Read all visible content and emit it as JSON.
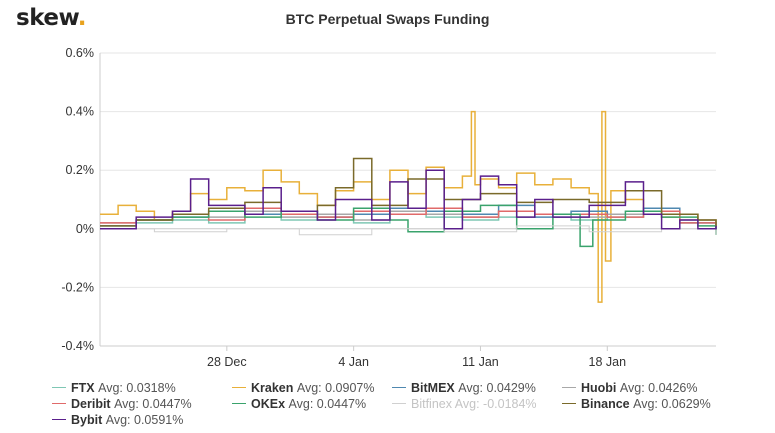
{
  "header": {
    "logo_text": "skew",
    "logo_dot": ".",
    "title": "BTC Perpetual Swaps Funding"
  },
  "chart_data": {
    "type": "line",
    "title": "BTC Perpetual Swaps Funding",
    "xlabel": "",
    "ylabel": "",
    "x_range": [
      "2020-12-21",
      "2021-01-24"
    ],
    "x_ticks": [
      {
        "date": "2020-12-28",
        "label": "28 Dec"
      },
      {
        "date": "2021-01-04",
        "label": "4 Jan"
      },
      {
        "date": "2021-01-11",
        "label": "11 Jan"
      },
      {
        "date": "2021-01-18",
        "label": "18 Jan"
      }
    ],
    "ylim": [
      -0.4,
      0.6
    ],
    "y_ticks": [
      -0.4,
      -0.2,
      0,
      0.2,
      0.4,
      0.6
    ],
    "y_tick_labels": [
      "-0.4%",
      "-0.2%",
      "0%",
      "0.2%",
      "0.4%",
      "0.6%"
    ],
    "grid": "horizontal",
    "legend_position": "bottom",
    "step_lines": true,
    "series": [
      {
        "name": "FTX",
        "avg_label": "Avg: 0.0318%",
        "color": "#7fc7b4",
        "muted": false,
        "points": [
          [
            "2020-12-21",
            0.01
          ],
          [
            "2020-12-23",
            0.02
          ],
          [
            "2020-12-25",
            0.03
          ],
          [
            "2020-12-27",
            0.02
          ],
          [
            "2020-12-29",
            0.05
          ],
          [
            "2020-12-31",
            0.03
          ],
          [
            "2021-01-02",
            0.04
          ],
          [
            "2021-01-04",
            0.02
          ],
          [
            "2021-01-06",
            0.05
          ],
          [
            "2021-01-08",
            0.04
          ],
          [
            "2021-01-10",
            0.03
          ],
          [
            "2021-01-12",
            0.04
          ],
          [
            "2021-01-14",
            0.05
          ],
          [
            "2021-01-16",
            0.03
          ],
          [
            "2021-01-18",
            0.04
          ],
          [
            "2021-01-20",
            0.05
          ],
          [
            "2021-01-22",
            0.02
          ],
          [
            "2021-01-24",
            0.0
          ]
        ]
      },
      {
        "name": "Kraken",
        "avg_label": "Avg: 0.0907%",
        "color": "#e8b03a",
        "muted": false,
        "points": [
          [
            "2020-12-21",
            0.05
          ],
          [
            "2020-12-22",
            0.08
          ],
          [
            "2020-12-23",
            0.06
          ],
          [
            "2020-12-24",
            0.03
          ],
          [
            "2020-12-25",
            0.06
          ],
          [
            "2020-12-26",
            0.12
          ],
          [
            "2020-12-27",
            0.1
          ],
          [
            "2020-12-28",
            0.14
          ],
          [
            "2020-12-29",
            0.13
          ],
          [
            "2020-12-30",
            0.2
          ],
          [
            "2020-12-31",
            0.16
          ],
          [
            "2021-01-01",
            0.12
          ],
          [
            "2021-01-02",
            0.08
          ],
          [
            "2021-01-03",
            0.13
          ],
          [
            "2021-01-04",
            0.16
          ],
          [
            "2021-01-05",
            0.1
          ],
          [
            "2021-01-06",
            0.2
          ],
          [
            "2021-01-07",
            0.12
          ],
          [
            "2021-01-08",
            0.21
          ],
          [
            "2021-01-09",
            0.14
          ],
          [
            "2021-01-10",
            0.18
          ],
          [
            "2021-01-10.5",
            0.4
          ],
          [
            "2021-01-10.7",
            0.15
          ],
          [
            "2021-01-11",
            0.17
          ],
          [
            "2021-01-12",
            0.14
          ],
          [
            "2021-01-13",
            0.19
          ],
          [
            "2021-01-14",
            0.15
          ],
          [
            "2021-01-15",
            0.17
          ],
          [
            "2021-01-16",
            0.14
          ],
          [
            "2021-01-17",
            0.12
          ],
          [
            "2021-01-17.5",
            -0.25
          ],
          [
            "2021-01-17.7",
            0.4
          ],
          [
            "2021-01-17.9",
            -0.11
          ],
          [
            "2021-01-18.2",
            0.13
          ],
          [
            "2021-01-19",
            0.1
          ],
          [
            "2021-01-20",
            0.06
          ],
          [
            "2021-01-21",
            0.04
          ],
          [
            "2021-01-22",
            0.05
          ],
          [
            "2021-01-23",
            0.03
          ],
          [
            "2021-01-24",
            0.02
          ]
        ]
      },
      {
        "name": "BitMEX",
        "avg_label": "Avg: 0.0429%",
        "color": "#4f88b0",
        "muted": false,
        "points": [
          [
            "2020-12-21",
            0.01
          ],
          [
            "2020-12-23",
            0.03
          ],
          [
            "2020-12-25",
            0.04
          ],
          [
            "2020-12-27",
            0.06
          ],
          [
            "2020-12-29",
            0.05
          ],
          [
            "2020-12-31",
            0.06
          ],
          [
            "2021-01-02",
            0.04
          ],
          [
            "2021-01-04",
            0.05
          ],
          [
            "2021-01-06",
            0.07
          ],
          [
            "2021-01-08",
            0.06
          ],
          [
            "2021-01-10",
            0.05
          ],
          [
            "2021-01-12",
            0.08
          ],
          [
            "2021-01-14",
            0.04
          ],
          [
            "2021-01-16",
            0.06
          ],
          [
            "2021-01-18",
            0.05
          ],
          [
            "2021-01-20",
            0.07
          ],
          [
            "2021-01-22",
            0.02
          ],
          [
            "2021-01-24",
            0.0
          ]
        ]
      },
      {
        "name": "Huobi",
        "avg_label": "Avg: 0.0426%",
        "color": "#a8a8a8",
        "muted": false,
        "points": [
          [
            "2020-12-21",
            0.02
          ],
          [
            "2020-12-23",
            0.03
          ],
          [
            "2020-12-25",
            0.05
          ],
          [
            "2020-12-27",
            0.04
          ],
          [
            "2020-12-29",
            0.06
          ],
          [
            "2020-12-31",
            0.04
          ],
          [
            "2021-01-02",
            0.05
          ],
          [
            "2021-01-04",
            0.03
          ],
          [
            "2021-01-06",
            0.06
          ],
          [
            "2021-01-08",
            0.05
          ],
          [
            "2021-01-10",
            0.04
          ],
          [
            "2021-01-12",
            0.06
          ],
          [
            "2021-01-14",
            0.05
          ],
          [
            "2021-01-16",
            0.04
          ],
          [
            "2021-01-18",
            0.05
          ],
          [
            "2021-01-20",
            0.06
          ],
          [
            "2021-01-22",
            0.03
          ],
          [
            "2021-01-24",
            0.01
          ]
        ]
      },
      {
        "name": "Deribit",
        "avg_label": "Avg: 0.0447%",
        "color": "#e06a6a",
        "muted": false,
        "points": [
          [
            "2020-12-21",
            0.02
          ],
          [
            "2020-12-23",
            0.03
          ],
          [
            "2020-12-25",
            0.05
          ],
          [
            "2020-12-27",
            0.03
          ],
          [
            "2020-12-29",
            0.07
          ],
          [
            "2020-12-31",
            0.05
          ],
          [
            "2021-01-02",
            0.04
          ],
          [
            "2021-01-04",
            0.06
          ],
          [
            "2021-01-06",
            0.05
          ],
          [
            "2021-01-08",
            0.07
          ],
          [
            "2021-01-10",
            0.04
          ],
          [
            "2021-01-12",
            0.06
          ],
          [
            "2021-01-14",
            0.05
          ],
          [
            "2021-01-16",
            0.05
          ],
          [
            "2021-01-18",
            0.04
          ],
          [
            "2021-01-20",
            0.06
          ],
          [
            "2021-01-22",
            0.02
          ],
          [
            "2021-01-24",
            0.0
          ]
        ]
      },
      {
        "name": "OKEx",
        "avg_label": "Avg: 0.0447%",
        "color": "#3aa36c",
        "muted": false,
        "points": [
          [
            "2020-12-21",
            0.0
          ],
          [
            "2020-12-23",
            0.03
          ],
          [
            "2020-12-25",
            0.04
          ],
          [
            "2020-12-27",
            0.06
          ],
          [
            "2020-12-29",
            0.04
          ],
          [
            "2020-12-31",
            0.06
          ],
          [
            "2021-01-02",
            0.03
          ],
          [
            "2021-01-04",
            0.07
          ],
          [
            "2021-01-06",
            0.03
          ],
          [
            "2021-01-07",
            -0.01
          ],
          [
            "2021-01-09",
            0.06
          ],
          [
            "2021-01-11",
            0.08
          ],
          [
            "2021-01-13",
            0.0
          ],
          [
            "2021-01-15",
            0.05
          ],
          [
            "2021-01-16.5",
            -0.06
          ],
          [
            "2021-01-17.2",
            0.03
          ],
          [
            "2021-01-19",
            0.06
          ],
          [
            "2021-01-21",
            0.04
          ],
          [
            "2021-01-23",
            0.01
          ],
          [
            "2021-01-24",
            -0.02
          ]
        ]
      },
      {
        "name": "Bitfinex",
        "avg_label": "Avg: -0.0184%",
        "color": "#d0d0d0",
        "muted": true,
        "points": [
          [
            "2020-12-21",
            0.0
          ],
          [
            "2020-12-24",
            -0.01
          ],
          [
            "2020-12-28",
            0.0
          ],
          [
            "2021-01-01",
            -0.02
          ],
          [
            "2021-01-05",
            0.0
          ],
          [
            "2021-01-09",
            -0.01
          ],
          [
            "2021-01-13",
            0.01
          ],
          [
            "2021-01-17",
            -0.01
          ],
          [
            "2021-01-21",
            0.0
          ],
          [
            "2021-01-24",
            -0.02
          ]
        ]
      },
      {
        "name": "Binance",
        "avg_label": "Avg: 0.0629%",
        "color": "#7a6a2a",
        "muted": false,
        "points": [
          [
            "2020-12-21",
            0.01
          ],
          [
            "2020-12-23",
            0.03
          ],
          [
            "2020-12-25",
            0.05
          ],
          [
            "2020-12-27",
            0.07
          ],
          [
            "2020-12-29",
            0.09
          ],
          [
            "2020-12-31",
            0.06
          ],
          [
            "2021-01-02",
            0.08
          ],
          [
            "2021-01-03",
            0.14
          ],
          [
            "2021-01-04",
            0.24
          ],
          [
            "2021-01-05",
            0.08
          ],
          [
            "2021-01-07",
            0.17
          ],
          [
            "2021-01-09",
            0.1
          ],
          [
            "2021-01-11",
            0.12
          ],
          [
            "2021-01-13",
            0.09
          ],
          [
            "2021-01-15",
            0.1
          ],
          [
            "2021-01-17",
            0.09
          ],
          [
            "2021-01-19",
            0.13
          ],
          [
            "2021-01-21",
            0.05
          ],
          [
            "2021-01-23",
            0.03
          ],
          [
            "2021-01-24",
            0.01
          ]
        ]
      },
      {
        "name": "Bybit",
        "avg_label": "Avg: 0.0591%",
        "color": "#5a1f8c",
        "muted": false,
        "points": [
          [
            "2020-12-21",
            0.0
          ],
          [
            "2020-12-23",
            0.04
          ],
          [
            "2020-12-25",
            0.06
          ],
          [
            "2020-12-26",
            0.17
          ],
          [
            "2020-12-27",
            0.08
          ],
          [
            "2020-12-29",
            0.05
          ],
          [
            "2020-12-30",
            0.14
          ],
          [
            "2020-12-31",
            0.06
          ],
          [
            "2021-01-02",
            0.03
          ],
          [
            "2021-01-03",
            0.1
          ],
          [
            "2021-01-05",
            0.03
          ],
          [
            "2021-01-06",
            0.16
          ],
          [
            "2021-01-07",
            0.07
          ],
          [
            "2021-01-08",
            0.2
          ],
          [
            "2021-01-09",
            0.0
          ],
          [
            "2021-01-10",
            0.1
          ],
          [
            "2021-01-11",
            0.18
          ],
          [
            "2021-01-12",
            0.15
          ],
          [
            "2021-01-13",
            0.04
          ],
          [
            "2021-01-14",
            0.1
          ],
          [
            "2021-01-15",
            0.04
          ],
          [
            "2021-01-17",
            0.08
          ],
          [
            "2021-01-19",
            0.16
          ],
          [
            "2021-01-20",
            0.05
          ],
          [
            "2021-01-21",
            0.0
          ],
          [
            "2021-01-22",
            0.03
          ],
          [
            "2021-01-23",
            0.0
          ],
          [
            "2021-01-24",
            0.01
          ]
        ]
      }
    ]
  }
}
